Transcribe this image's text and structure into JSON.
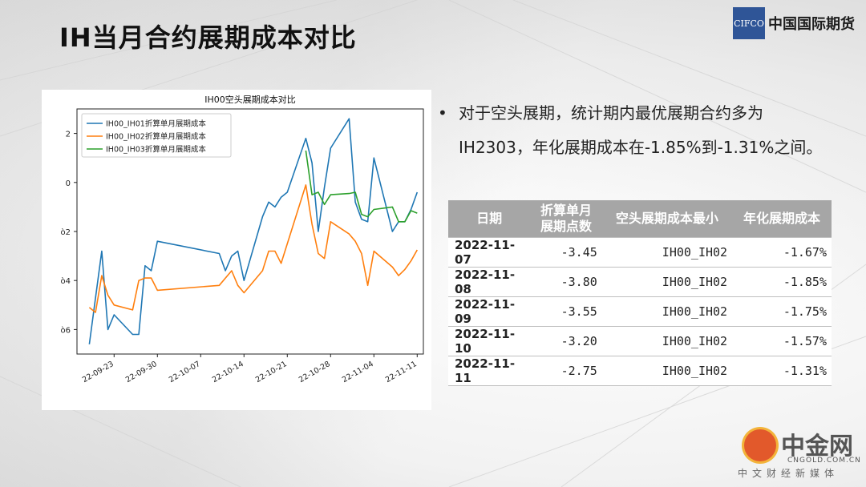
{
  "slide": {
    "title": "IH当月合约展期成本对比",
    "logo_box": "CIFCO",
    "logo_text": "中国国际期货"
  },
  "chart_data": {
    "type": "line",
    "title": "IH00空头展期成本对比",
    "xlabel": "",
    "ylabel": "",
    "x_ticks": [
      "22-09-23",
      "22-09-30",
      "22-10-07",
      "22-10-14",
      "22-10-21",
      "22-10-28",
      "22-11-04",
      "22-11-11"
    ],
    "y_ticks": [
      "2",
      "0",
      "ò2",
      "ò4",
      "ò6"
    ],
    "ylim": [
      -7,
      3
    ],
    "legend_position": "top-left",
    "grid": false,
    "series": [
      {
        "name": "IH00_IH01折算单月展期成本",
        "color": "#1f77b4",
        "points": [
          [
            "2022-09-19",
            -6.6
          ],
          [
            "2022-09-21",
            -2.8
          ],
          [
            "2022-09-22",
            -6.0
          ],
          [
            "2022-09-23",
            -5.4
          ],
          [
            "2022-09-26",
            -6.2
          ],
          [
            "2022-09-27",
            -6.2
          ],
          [
            "2022-09-28",
            -3.4
          ],
          [
            "2022-09-29",
            -3.6
          ],
          [
            "2022-09-30",
            -2.4
          ],
          [
            "2022-10-10",
            -2.9
          ],
          [
            "2022-10-11",
            -3.6
          ],
          [
            "2022-10-12",
            -3.0
          ],
          [
            "2022-10-13",
            -2.8
          ],
          [
            "2022-10-14",
            -4.0
          ],
          [
            "2022-10-17",
            -1.4
          ],
          [
            "2022-10-18",
            -0.8
          ],
          [
            "2022-10-19",
            -1.0
          ],
          [
            "2022-10-20",
            -0.6
          ],
          [
            "2022-10-21",
            -0.4
          ],
          [
            "2022-10-24",
            1.8
          ],
          [
            "2022-10-25",
            0.8
          ],
          [
            "2022-10-26",
            -2.0
          ],
          [
            "2022-10-27",
            -0.2
          ],
          [
            "2022-10-28",
            1.4
          ],
          [
            "2022-10-31",
            2.6
          ],
          [
            "2022-11-01",
            -0.8
          ],
          [
            "2022-11-02",
            -1.5
          ],
          [
            "2022-11-03",
            -1.6
          ],
          [
            "2022-11-04",
            1.0
          ],
          [
            "2022-11-07",
            -2.0
          ],
          [
            "2022-11-08",
            -1.6
          ],
          [
            "2022-11-09",
            -1.6
          ],
          [
            "2022-11-10",
            -1.1
          ],
          [
            "2022-11-11",
            -0.4
          ]
        ]
      },
      {
        "name": "IH00_IH02折算单月展期成本",
        "color": "#ff7f0e",
        "points": [
          [
            "2022-09-19",
            -5.1
          ],
          [
            "2022-09-20",
            -5.3
          ],
          [
            "2022-09-21",
            -3.8
          ],
          [
            "2022-09-22",
            -4.6
          ],
          [
            "2022-09-23",
            -5.0
          ],
          [
            "2022-09-26",
            -5.2
          ],
          [
            "2022-09-27",
            -4.0
          ],
          [
            "2022-09-28",
            -3.9
          ],
          [
            "2022-09-29",
            -3.9
          ],
          [
            "2022-09-30",
            -4.4
          ],
          [
            "2022-10-10",
            -4.2
          ],
          [
            "2022-10-12",
            -3.6
          ],
          [
            "2022-10-13",
            -4.2
          ],
          [
            "2022-10-14",
            -4.5
          ],
          [
            "2022-10-17",
            -3.6
          ],
          [
            "2022-10-18",
            -2.8
          ],
          [
            "2022-10-19",
            -2.8
          ],
          [
            "2022-10-20",
            -3.3
          ],
          [
            "2022-10-21",
            -2.5
          ],
          [
            "2022-10-24",
            -0.1
          ],
          [
            "2022-10-25",
            -1.7
          ],
          [
            "2022-10-26",
            -2.9
          ],
          [
            "2022-10-27",
            -3.1
          ],
          [
            "2022-10-28",
            -1.6
          ],
          [
            "2022-10-31",
            -2.1
          ],
          [
            "2022-11-01",
            -2.4
          ],
          [
            "2022-11-02",
            -2.9
          ],
          [
            "2022-11-03",
            -4.2
          ],
          [
            "2022-11-04",
            -2.8
          ],
          [
            "2022-11-07",
            -3.45
          ],
          [
            "2022-11-08",
            -3.8
          ],
          [
            "2022-11-09",
            -3.55
          ],
          [
            "2022-11-10",
            -3.2
          ],
          [
            "2022-11-11",
            -2.75
          ]
        ]
      },
      {
        "name": "IH00_IH03折算单月展期成本",
        "color": "#2ca02c",
        "points": [
          [
            "2022-10-24",
            1.3
          ],
          [
            "2022-10-25",
            -0.5
          ],
          [
            "2022-10-26",
            -0.4
          ],
          [
            "2022-10-27",
            -0.9
          ],
          [
            "2022-10-28",
            -0.5
          ],
          [
            "2022-10-31",
            -0.45
          ],
          [
            "2022-11-01",
            -0.4
          ],
          [
            "2022-11-02",
            -1.3
          ],
          [
            "2022-11-03",
            -1.4
          ],
          [
            "2022-11-04",
            -1.1
          ],
          [
            "2022-11-07",
            -1.0
          ],
          [
            "2022-11-08",
            -1.6
          ],
          [
            "2022-11-09",
            -1.6
          ],
          [
            "2022-11-10",
            -1.15
          ],
          [
            "2022-11-11",
            -1.25
          ]
        ]
      }
    ]
  },
  "bullet": {
    "line1": "对于空头展期，统计期内最优展期合约多为",
    "line2": "IH2303，年化展期成本在-1.85%到-1.31%之间。"
  },
  "table": {
    "headers": [
      "日期",
      "折算单月\n展期点数",
      "空头展期成本最小",
      "年化展期成本"
    ],
    "rows": [
      [
        "2022-11-07",
        "-3.45",
        "IH00_IH02",
        "-1.67%"
      ],
      [
        "2022-11-08",
        "-3.80",
        "IH00_IH02",
        "-1.85%"
      ],
      [
        "2022-11-09",
        "-3.55",
        "IH00_IH02",
        "-1.75%"
      ],
      [
        "2022-11-10",
        "-3.20",
        "IH00_IH02",
        "-1.57%"
      ],
      [
        "2022-11-11",
        "-2.75",
        "IH00_IH02",
        "-1.31%"
      ]
    ]
  },
  "watermark": {
    "name": "中金网",
    "url": "CNGOLD.COM.CN",
    "sub": "中文财经新媒体"
  }
}
